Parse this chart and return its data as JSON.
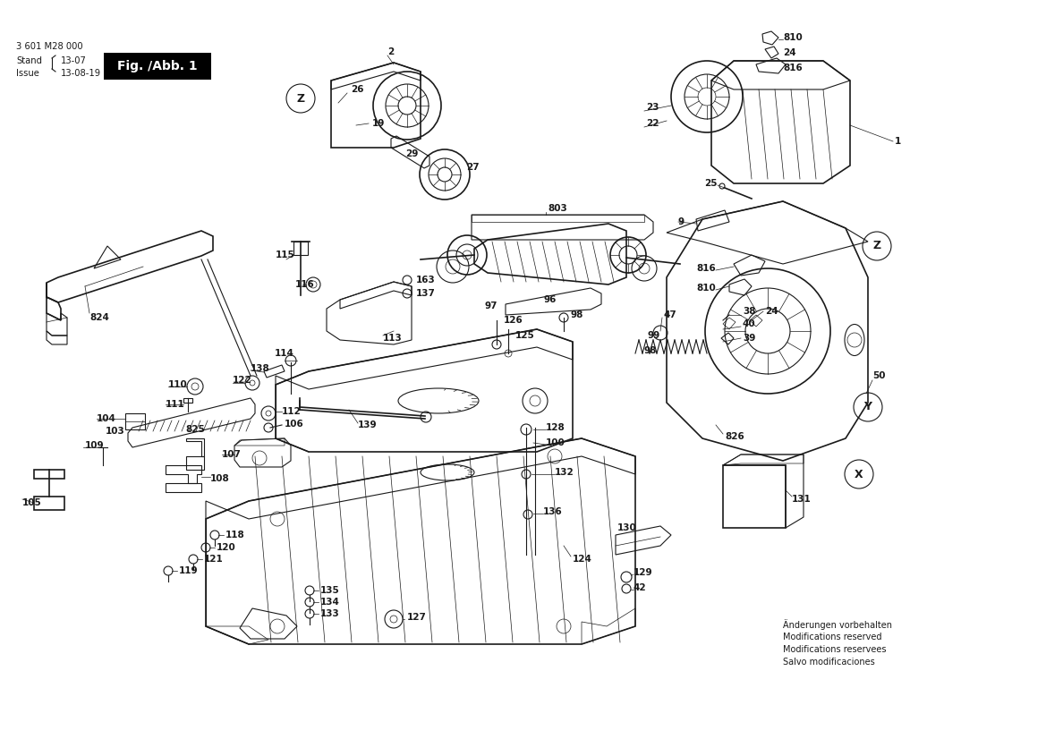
{
  "background_color": "#ffffff",
  "line_color": "#1a1a1a",
  "fig_label_bg": "#000000",
  "fig_label_fg": "#ffffff",
  "title_line1": "3 601 M28 000",
  "title_stand": "Stand",
  "title_issue": "Issue",
  "title_stand_val": "13-07",
  "title_issue_val": "13-08-19",
  "fig_label": "Fig. /Abb. 1",
  "disclaimer": [
    "Änderungen vorbehalten",
    "Modifications reserved",
    "Modifications reservees",
    "Salvo modificaciones"
  ],
  "bold_labels": [
    "810",
    "24",
    "816",
    "1",
    "23",
    "22",
    "25",
    "9",
    "816",
    "810",
    "47",
    "38",
    "40",
    "39",
    "24",
    "803",
    "2",
    "26",
    "19",
    "29",
    "27",
    "115",
    "116",
    "163",
    "137",
    "113",
    "97",
    "96",
    "126",
    "125",
    "98",
    "99",
    "824",
    "110",
    "111",
    "103",
    "104",
    "109",
    "105",
    "825",
    "108",
    "122",
    "138",
    "114",
    "139",
    "112",
    "106",
    "107",
    "128",
    "100",
    "132",
    "136",
    "124",
    "130",
    "129",
    "42",
    "131",
    "826",
    "50",
    "Y",
    "X",
    "Z",
    "118",
    "120",
    "121",
    "119",
    "135",
    "134",
    "133",
    "127"
  ]
}
